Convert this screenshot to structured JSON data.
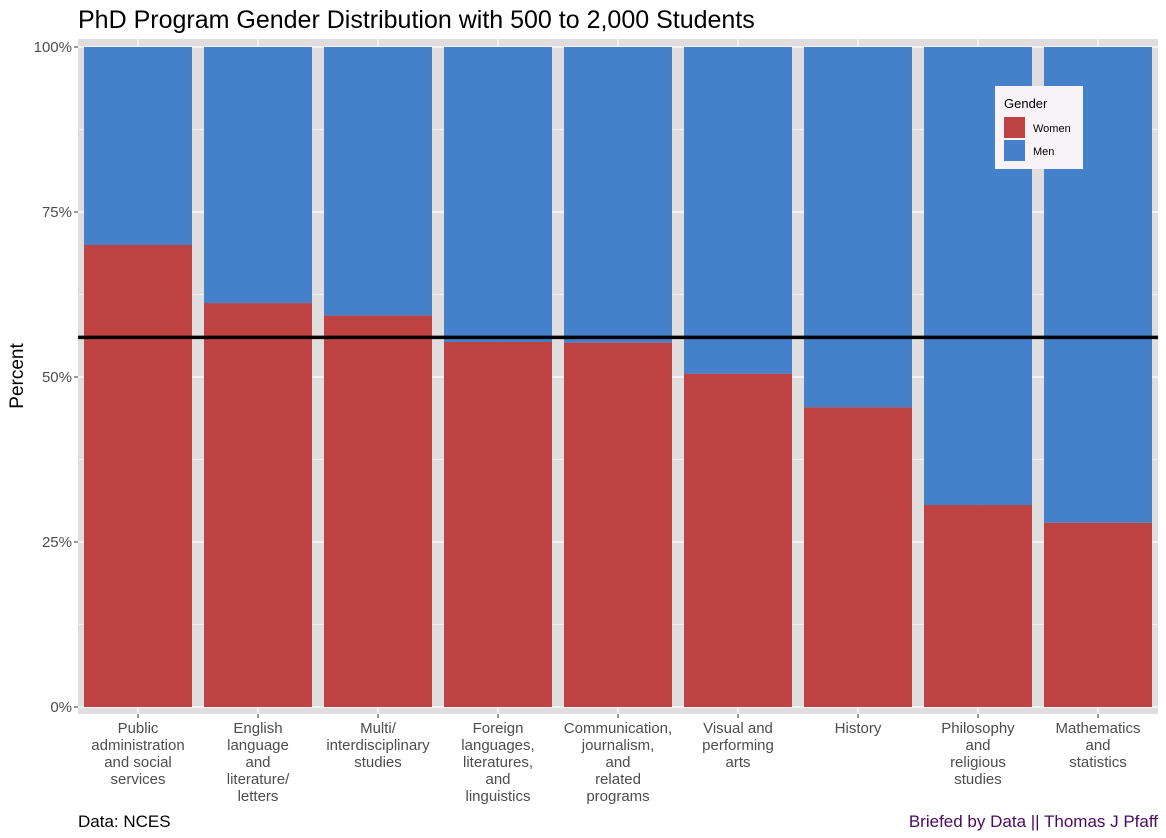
{
  "chart_data": {
    "type": "bar",
    "stacked": true,
    "title": "PhD Program Gender Distribution with 500 to 2,000 Students",
    "xlabel": "",
    "ylabel": "Percent",
    "ylim": [
      0,
      100
    ],
    "y_ticks": [
      "0%",
      "25%",
      "50%",
      "75%",
      "100%"
    ],
    "grid": true,
    "legend": {
      "title": "Gender",
      "placement": "top-right",
      "entries": [
        "Women",
        "Men"
      ]
    },
    "categories": [
      "Public administration and social services",
      "English language and literature/ letters",
      "Multi/ interdisciplinary studies",
      "Foreign languages, literatures, and linguistics",
      "Communication, journalism, and related programs",
      "Visual and performing arts",
      "History",
      "Philosophy and religious studies",
      "Mathematics and statistics"
    ],
    "category_label_lines": [
      [
        "Public",
        "administration",
        "and social",
        "services"
      ],
      [
        "English",
        "language",
        "and",
        "literature/",
        "letters"
      ],
      [
        "Multi/",
        "interdisciplinary",
        "studies"
      ],
      [
        "Foreign",
        "languages,",
        "literatures,",
        "and",
        "linguistics"
      ],
      [
        "Communication,",
        "journalism,",
        "and",
        "related",
        "programs"
      ],
      [
        "Visual and",
        "performing",
        "arts"
      ],
      [
        "History"
      ],
      [
        "Philosophy",
        "and",
        "religious",
        "studies"
      ],
      [
        "Mathematics",
        "and",
        "statistics"
      ]
    ],
    "series": [
      {
        "name": "Women",
        "values": [
          70.0,
          61.2,
          59.3,
          55.3,
          55.2,
          50.5,
          45.4,
          30.6,
          27.9
        ]
      },
      {
        "name": "Men",
        "values": [
          30.0,
          38.8,
          40.7,
          44.7,
          44.8,
          49.5,
          54.6,
          69.4,
          72.1
        ]
      }
    ],
    "reference_line": {
      "y": 56,
      "color": "#000000"
    },
    "colors": {
      "women": "#BE4242",
      "men": "#4580CB",
      "panel_background": "#E0DDDF",
      "grid": "#FFFFFF",
      "legend_background": "#F7F3F6",
      "caption_right": "#4B0A5E"
    },
    "caption_left": "Data: NCES",
    "caption_right": "Briefed by Data || Thomas J Pfaff"
  }
}
